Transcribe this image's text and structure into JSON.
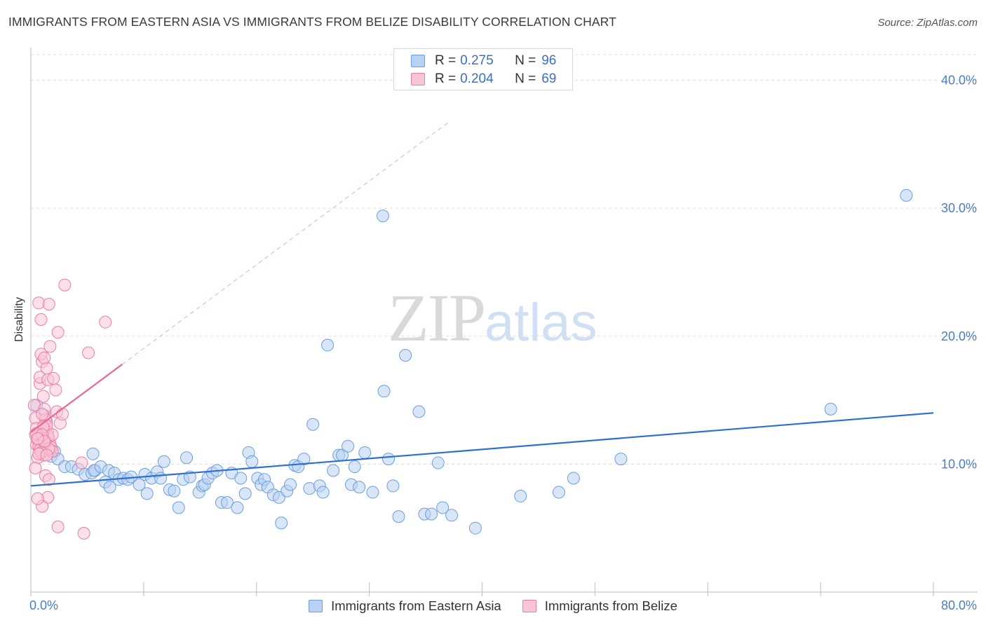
{
  "title": "IMMIGRANTS FROM EASTERN ASIA VS IMMIGRANTS FROM BELIZE DISABILITY CORRELATION CHART",
  "source": "Source: ZipAtlas.com",
  "watermark": {
    "zip": "ZIP",
    "atlas": "atlas"
  },
  "colors": {
    "blue": "#6b9ee0",
    "blue_fill": "#b9d1f3",
    "blue_line": "#2f6fcf",
    "pink": "#ee7da3",
    "pink_fill": "#f8c6d6",
    "pink_line": "#e8679a",
    "tick_text": "#4a7cc7",
    "grid": "#dddddd"
  },
  "legend": {
    "rows": [
      {
        "r_label": "R =",
        "r_value": "0.275",
        "n_label": "N =",
        "n_value": "96"
      },
      {
        "r_label": "R =",
        "r_value": "0.204",
        "n_label": "N =",
        "n_value": "69"
      }
    ]
  },
  "chart_data": {
    "type": "scatter",
    "title": "IMMIGRANTS FROM EASTERN ASIA VS IMMIGRANTS FROM BELIZE DISABILITY CORRELATION CHART",
    "xlabel": "",
    "ylabel": "Disability",
    "xlim": [
      0,
      80
    ],
    "ylim": [
      0,
      42
    ],
    "x_tick_labels": [
      "0.0%",
      "80.0%"
    ],
    "y_ticks": [
      10,
      20,
      30,
      40
    ],
    "y_tick_labels": [
      "10.0%",
      "20.0%",
      "30.0%",
      "40.0%"
    ],
    "grid": true,
    "legend_position": "bottom-center",
    "series": [
      {
        "name": "Immigrants from Eastern Asia",
        "color": "#6b9ee0",
        "trend": {
          "x": [
            0,
            80
          ],
          "y": [
            8.3,
            14.0
          ]
        },
        "points": [
          [
            0.5,
            14.6
          ],
          [
            1.2,
            13.8
          ],
          [
            0.8,
            12.3
          ],
          [
            1.5,
            11.2
          ],
          [
            2.1,
            11.0
          ],
          [
            1.8,
            10.6
          ],
          [
            2.4,
            10.4
          ],
          [
            3.0,
            9.8
          ],
          [
            3.6,
            9.8
          ],
          [
            4.2,
            9.6
          ],
          [
            4.8,
            9.2
          ],
          [
            5.4,
            9.3
          ],
          [
            5.7,
            9.5
          ],
          [
            5.6,
            9.5
          ],
          [
            6.2,
            9.8
          ],
          [
            5.5,
            10.8
          ],
          [
            6.9,
            9.5
          ],
          [
            6.6,
            8.6
          ],
          [
            7.0,
            8.2
          ],
          [
            7.4,
            9.3
          ],
          [
            7.8,
            8.8
          ],
          [
            8.2,
            8.9
          ],
          [
            8.6,
            8.8
          ],
          [
            8.9,
            9.0
          ],
          [
            9.6,
            8.4
          ],
          [
            10.1,
            9.2
          ],
          [
            10.3,
            7.7
          ],
          [
            10.7,
            8.9
          ],
          [
            11.2,
            9.4
          ],
          [
            11.5,
            8.9
          ],
          [
            11.8,
            10.2
          ],
          [
            12.3,
            8.0
          ],
          [
            12.7,
            7.9
          ],
          [
            13.1,
            6.6
          ],
          [
            13.5,
            8.8
          ],
          [
            13.8,
            10.5
          ],
          [
            14.1,
            9.0
          ],
          [
            14.9,
            7.8
          ],
          [
            15.2,
            8.3
          ],
          [
            15.4,
            8.4
          ],
          [
            15.7,
            8.9
          ],
          [
            16.1,
            9.3
          ],
          [
            16.5,
            9.5
          ],
          [
            16.9,
            7.0
          ],
          [
            17.4,
            7.0
          ],
          [
            17.8,
            9.3
          ],
          [
            18.3,
            6.6
          ],
          [
            18.6,
            8.9
          ],
          [
            19.0,
            7.7
          ],
          [
            19.3,
            10.9
          ],
          [
            19.6,
            10.2
          ],
          [
            20.1,
            8.9
          ],
          [
            20.4,
            8.4
          ],
          [
            20.7,
            8.8
          ],
          [
            21.0,
            8.2
          ],
          [
            21.5,
            7.6
          ],
          [
            22.0,
            7.4
          ],
          [
            22.2,
            5.4
          ],
          [
            22.7,
            7.9
          ],
          [
            23.0,
            8.4
          ],
          [
            23.4,
            9.9
          ],
          [
            23.7,
            9.8
          ],
          [
            24.2,
            10.4
          ],
          [
            24.7,
            8.1
          ],
          [
            25.6,
            8.3
          ],
          [
            25.9,
            7.8
          ],
          [
            26.3,
            19.3
          ],
          [
            26.8,
            9.5
          ],
          [
            27.3,
            10.7
          ],
          [
            27.6,
            10.7
          ],
          [
            28.1,
            11.4
          ],
          [
            28.4,
            8.4
          ],
          [
            28.7,
            9.8
          ],
          [
            29.1,
            8.2
          ],
          [
            29.6,
            10.9
          ],
          [
            30.3,
            7.8
          ],
          [
            31.2,
            29.4
          ],
          [
            31.3,
            15.7
          ],
          [
            31.7,
            10.4
          ],
          [
            32.1,
            8.3
          ],
          [
            32.6,
            5.9
          ],
          [
            33.2,
            18.5
          ],
          [
            34.4,
            14.1
          ],
          [
            34.9,
            6.1
          ],
          [
            35.5,
            6.1
          ],
          [
            36.1,
            10.1
          ],
          [
            36.5,
            6.6
          ],
          [
            37.3,
            6.0
          ],
          [
            39.4,
            5.0
          ],
          [
            43.4,
            7.5
          ],
          [
            46.8,
            7.8
          ],
          [
            48.1,
            8.9
          ],
          [
            52.3,
            10.4
          ],
          [
            70.9,
            14.3
          ],
          [
            77.6,
            31.0
          ],
          [
            25.0,
            13.1
          ]
        ]
      },
      {
        "name": "Immigrants from Belize",
        "color": "#ee7da3",
        "trend": {
          "x": [
            0,
            8.1
          ],
          "y": [
            12.5,
            17.8
          ]
        },
        "points": [
          [
            0.3,
            14.6
          ],
          [
            0.4,
            13.6
          ],
          [
            0.5,
            12.8
          ],
          [
            0.6,
            12.2
          ],
          [
            0.7,
            11.9
          ],
          [
            0.8,
            11.6
          ],
          [
            0.9,
            11.2
          ],
          [
            0.5,
            11.5
          ],
          [
            1.0,
            10.9
          ],
          [
            1.1,
            10.7
          ],
          [
            0.6,
            10.5
          ],
          [
            1.2,
            12.4
          ],
          [
            1.3,
            11.8
          ],
          [
            0.4,
            9.7
          ],
          [
            0.7,
            22.6
          ],
          [
            0.9,
            21.3
          ],
          [
            1.0,
            18.0
          ],
          [
            0.8,
            16.3
          ],
          [
            0.8,
            16.8
          ],
          [
            1.1,
            15.3
          ],
          [
            1.2,
            14.3
          ],
          [
            1.4,
            13.3
          ],
          [
            1.5,
            12.5
          ],
          [
            1.6,
            12.0
          ],
          [
            1.7,
            11.6
          ],
          [
            1.8,
            11.3
          ],
          [
            1.9,
            11.0
          ],
          [
            1.4,
            17.5
          ],
          [
            1.5,
            16.6
          ],
          [
            1.6,
            22.5
          ],
          [
            1.7,
            19.2
          ],
          [
            1.3,
            9.1
          ],
          [
            1.6,
            8.8
          ],
          [
            1.5,
            7.4
          ],
          [
            1.0,
            6.7
          ],
          [
            0.6,
            7.3
          ],
          [
            2.0,
            16.7
          ],
          [
            2.2,
            15.8
          ],
          [
            2.3,
            14.1
          ],
          [
            2.4,
            20.3
          ],
          [
            2.6,
            13.2
          ],
          [
            1.3,
            13.5
          ],
          [
            1.4,
            13.0
          ],
          [
            1.5,
            12.2
          ],
          [
            0.4,
            12.3
          ],
          [
            0.6,
            11.9
          ],
          [
            0.7,
            11.4
          ],
          [
            0.8,
            11.1
          ],
          [
            1.9,
            12.3
          ],
          [
            1.0,
            13.9
          ],
          [
            1.1,
            12.9
          ],
          [
            1.2,
            11.7
          ],
          [
            2.8,
            13.9
          ],
          [
            1.6,
            11.2
          ],
          [
            0.5,
            12.4
          ],
          [
            1.0,
            12.3
          ],
          [
            1.2,
            11.8
          ],
          [
            0.9,
            10.9
          ],
          [
            0.7,
            10.8
          ],
          [
            0.9,
            18.6
          ],
          [
            1.2,
            18.3
          ],
          [
            3.0,
            24.0
          ],
          [
            5.1,
            18.7
          ],
          [
            6.6,
            21.1
          ],
          [
            2.4,
            5.1
          ],
          [
            4.7,
            4.6
          ],
          [
            1.4,
            10.7
          ],
          [
            0.6,
            12.0
          ],
          [
            4.5,
            10.1
          ]
        ]
      }
    ]
  }
}
